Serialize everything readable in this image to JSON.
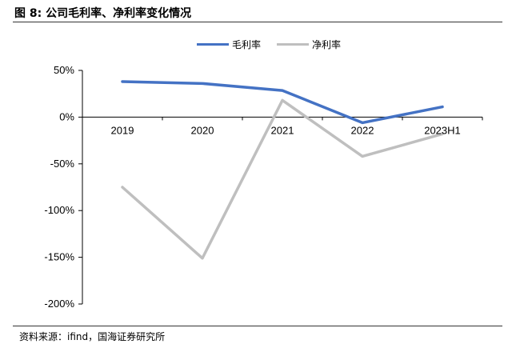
{
  "figure": {
    "title": "图 8:  公司毛利率、净利率变化情况",
    "source": "资料来源：ifind，国海证券研究所"
  },
  "chart_data": {
    "type": "line",
    "categories": [
      "2019",
      "2020",
      "2021",
      "2022",
      "2023H1"
    ],
    "series": [
      {
        "name": "毛利率",
        "color": "#4472C4",
        "values": [
          38,
          36,
          28.5,
          -6,
          11
        ]
      },
      {
        "name": "净利率",
        "color": "#BFBFBF",
        "values": [
          -75,
          -151,
          18,
          -42,
          -18
        ]
      }
    ],
    "y_ticks": [
      "50%",
      "0%",
      "-50%",
      "-100%",
      "-150%",
      "-200%"
    ],
    "y_tick_values": [
      50,
      0,
      -50,
      -100,
      -150,
      -200
    ],
    "ylim": [
      -200,
      50
    ],
    "grid": false,
    "legend_position": "top-center"
  }
}
